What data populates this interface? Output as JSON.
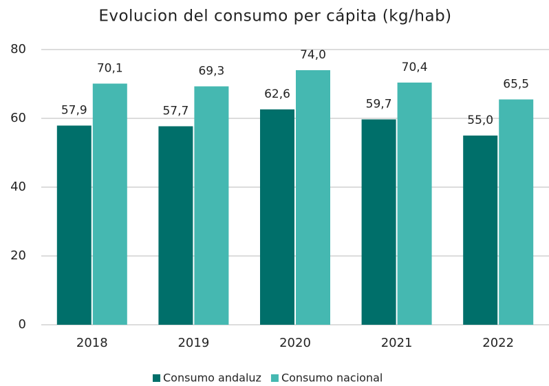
{
  "chart_data": {
    "type": "bar",
    "title": "Evolucion del consumo per cápita  (kg/hab)",
    "categories": [
      "2018",
      "2019",
      "2020",
      "2021",
      "2022"
    ],
    "series": [
      {
        "name": "Consumo andaluz",
        "color": "#006f6a",
        "values": [
          57.9,
          57.7,
          62.6,
          59.7,
          55.0
        ],
        "value_labels": [
          "57,9",
          "57,7",
          "62,6",
          "59,7",
          "55,0"
        ]
      },
      {
        "name": "Consumo nacional",
        "color": "#45b8b1",
        "values": [
          70.1,
          69.3,
          74.0,
          70.4,
          65.5
        ],
        "value_labels": [
          "70,1",
          "69,3",
          "74,0",
          "70,4",
          "65,5"
        ]
      }
    ],
    "ylim": [
      0,
      80
    ],
    "yticks": [
      0,
      20,
      40,
      60,
      80
    ],
    "grid": true,
    "legend": "bottom"
  }
}
